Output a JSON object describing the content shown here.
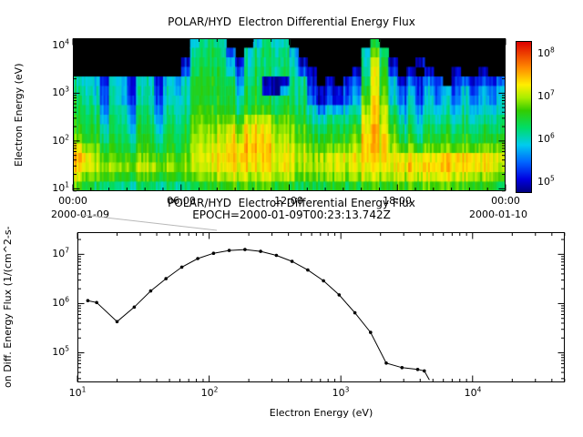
{
  "colors": {
    "background": "#ffffff",
    "frame": "#000000",
    "line": "#000000",
    "callout": "#b8b8b8",
    "no_data": "#000000",
    "colormap_stops": [
      {
        "v": 4.8,
        "c": "#000080"
      },
      {
        "v": 5.1,
        "c": "#0000e0"
      },
      {
        "v": 5.5,
        "c": "#0066ff"
      },
      {
        "v": 5.9,
        "c": "#00ccee"
      },
      {
        "v": 6.3,
        "c": "#00dd66"
      },
      {
        "v": 6.7,
        "c": "#33cc00"
      },
      {
        "v": 7.0,
        "c": "#aaee00"
      },
      {
        "v": 7.3,
        "c": "#ffee00"
      },
      {
        "v": 7.7,
        "c": "#ff8800"
      },
      {
        "v": 8.3,
        "c": "#dd0000"
      }
    ]
  },
  "chart_data": [
    {
      "type": "heatmap",
      "title": "POLAR/HYD  Electron Differential Energy Flux",
      "ylabel": "Electron Energy (eV)",
      "y_ticks": [
        {
          "base": "10",
          "exp": "4"
        },
        {
          "base": "10",
          "exp": "3"
        },
        {
          "base": "10",
          "exp": "2"
        },
        {
          "base": "10",
          "exp": "1"
        }
      ],
      "x_ticks": [
        "00:00",
        "06:00",
        "12:00",
        "18:00",
        "00:00"
      ],
      "x_date_start": "2000-01-09",
      "x_date_end": "2000-01-10",
      "time_range_hours": [
        0,
        24
      ],
      "y_range_log10": [
        0.95,
        4.15
      ],
      "colorbar_ticks": [
        {
          "base": "10",
          "exp": "8"
        },
        {
          "base": "10",
          "exp": "7"
        },
        {
          "base": "10",
          "exp": "6"
        },
        {
          "base": "10",
          "exp": "5"
        }
      ],
      "colorbar_range_log10": [
        4.8,
        8.3
      ],
      "grid_note": "rows top(10^4 eV) to bottom(10^1 eV), 48 columns of 30 min; values are log10 flux, 0 = no data (black)",
      "values_log10_flux": [
        [
          0,
          0,
          0,
          0,
          0,
          0,
          0,
          0,
          0,
          0,
          0,
          0,
          0,
          6.0,
          6.3,
          6.4,
          6.2,
          0,
          0,
          0,
          6.0,
          6.2,
          6.1,
          6.0,
          0,
          0,
          0,
          0,
          0,
          0,
          0,
          0,
          0,
          6.4,
          0,
          0,
          0,
          0,
          0,
          0,
          0,
          0,
          0,
          0,
          0,
          0,
          0,
          0
        ],
        [
          0,
          0,
          0,
          0,
          0,
          0,
          0,
          0,
          0,
          0,
          0,
          0,
          0,
          6.2,
          6.4,
          6.5,
          6.3,
          5.4,
          0,
          6.0,
          6.2,
          6.3,
          6.2,
          6.2,
          5.8,
          0,
          0,
          0,
          0,
          0,
          0,
          0,
          6.0,
          6.8,
          6.2,
          0,
          0,
          0,
          0,
          0,
          0,
          0,
          0,
          0,
          0,
          0,
          0,
          0
        ],
        [
          0,
          0,
          0,
          0,
          0,
          0,
          0,
          0,
          0,
          0,
          0,
          0,
          5.2,
          6.3,
          6.5,
          6.4,
          6.4,
          5.8,
          5.1,
          6.1,
          6.3,
          6.2,
          6.3,
          6.2,
          6.0,
          5.0,
          0,
          0,
          0,
          0,
          0,
          0,
          6.1,
          7.1,
          6.4,
          5.0,
          0,
          0,
          5.0,
          0,
          0,
          0,
          0,
          0,
          0,
          0,
          0,
          0
        ],
        [
          0,
          0,
          0,
          0,
          0,
          0,
          0,
          0,
          0,
          0,
          0,
          0,
          5.5,
          6.4,
          6.6,
          6.5,
          6.5,
          6.0,
          5.4,
          6.2,
          6.4,
          6.3,
          6.2,
          6.3,
          6.1,
          5.4,
          5.0,
          0,
          0,
          0,
          0,
          5.0,
          6.2,
          7.2,
          6.5,
          5.3,
          0,
          5.0,
          0,
          5.1,
          0,
          0,
          5.0,
          0,
          0,
          5.0,
          0,
          0
        ],
        [
          6.2,
          6.0,
          5.8,
          5.2,
          6.0,
          5.9,
          5.1,
          5.9,
          6.0,
          5.2,
          5.9,
          5.8,
          6.1,
          6.6,
          6.7,
          6.6,
          6.5,
          6.4,
          5.6,
          6.3,
          6.4,
          4.9,
          4.9,
          5.0,
          6.2,
          6.2,
          5.1,
          0,
          5.0,
          0,
          5.2,
          5.4,
          6.4,
          7.2,
          6.6,
          5.8,
          5.0,
          5.5,
          5.2,
          5.6,
          5.3,
          0,
          5.2,
          5.5,
          5.1,
          5.4,
          5.2,
          5.5
        ],
        [
          6.3,
          6.1,
          5.9,
          5.3,
          6.1,
          6.0,
          5.2,
          6.0,
          6.1,
          5.3,
          6.0,
          5.9,
          6.2,
          6.6,
          6.7,
          6.6,
          6.6,
          6.5,
          5.8,
          6.4,
          6.5,
          5.0,
          4.9,
          5.8,
          6.3,
          6.3,
          5.3,
          5.0,
          5.2,
          5.0,
          5.4,
          5.6,
          6.6,
          7.2,
          6.7,
          5.9,
          5.4,
          5.8,
          5.3,
          5.9,
          5.5,
          5.8,
          5.4,
          5.9,
          5.3,
          5.8,
          5.5,
          5.9
        ],
        [
          6.5,
          6.2,
          6.0,
          5.4,
          6.1,
          6.0,
          5.3,
          6.0,
          6.1,
          5.4,
          6.0,
          6.0,
          6.2,
          6.6,
          6.7,
          6.5,
          6.6,
          6.5,
          6.0,
          6.4,
          6.5,
          6.4,
          6.3,
          6.4,
          6.3,
          6.3,
          5.5,
          5.0,
          5.3,
          5.0,
          5.5,
          5.8,
          6.8,
          7.3,
          6.8,
          6.0,
          5.5,
          6.0,
          5.4,
          6.0,
          5.6,
          5.9,
          5.5,
          6.0,
          5.5,
          5.9,
          5.6,
          6.0
        ],
        [
          6.5,
          6.3,
          6.2,
          5.6,
          6.2,
          6.2,
          5.5,
          6.2,
          6.2,
          5.6,
          6.2,
          6.1,
          6.3,
          6.7,
          6.8,
          6.7,
          6.7,
          6.6,
          6.2,
          6.6,
          6.7,
          6.6,
          6.5,
          6.5,
          6.4,
          6.4,
          6.0,
          5.6,
          5.9,
          5.7,
          6.0,
          6.1,
          7.0,
          7.4,
          7.0,
          6.3,
          5.8,
          6.1,
          5.7,
          6.1,
          5.9,
          6.0,
          5.8,
          6.1,
          5.8,
          6.0,
          5.9,
          6.1
        ],
        [
          6.6,
          6.4,
          6.3,
          5.8,
          6.3,
          6.3,
          5.7,
          6.3,
          6.3,
          5.8,
          6.3,
          6.2,
          6.4,
          6.8,
          6.9,
          6.8,
          6.9,
          6.8,
          6.5,
          7.0,
          7.1,
          7.0,
          6.8,
          6.7,
          6.6,
          6.5,
          6.2,
          6.0,
          6.2,
          6.1,
          6.3,
          6.3,
          7.2,
          7.4,
          7.1,
          6.5,
          6.0,
          6.3,
          5.9,
          6.3,
          6.1,
          6.2,
          6.0,
          6.3,
          6.0,
          6.2,
          6.1,
          6.3
        ],
        [
          6.7,
          6.5,
          6.4,
          6.0,
          6.4,
          6.4,
          5.9,
          6.4,
          6.4,
          6.0,
          6.4,
          6.3,
          6.5,
          6.9,
          7.0,
          7.0,
          7.1,
          7.2,
          6.8,
          7.3,
          7.3,
          7.2,
          7.0,
          6.9,
          6.8,
          6.7,
          6.4,
          6.3,
          6.4,
          6.3,
          6.5,
          6.6,
          7.3,
          7.5,
          7.2,
          6.7,
          6.2,
          6.4,
          6.1,
          6.4,
          6.3,
          6.4,
          6.2,
          6.4,
          6.2,
          6.4,
          6.3,
          6.4
        ],
        [
          6.9,
          6.6,
          6.5,
          6.2,
          6.5,
          6.5,
          6.1,
          6.5,
          6.5,
          6.2,
          6.5,
          6.4,
          6.6,
          7.0,
          7.1,
          7.1,
          7.2,
          7.3,
          7.0,
          7.4,
          7.4,
          7.3,
          7.1,
          7.0,
          6.9,
          6.8,
          6.6,
          6.5,
          6.6,
          6.5,
          6.7,
          6.8,
          7.4,
          7.5,
          7.3,
          6.9,
          6.4,
          6.6,
          6.3,
          6.6,
          6.5,
          6.6,
          6.4,
          6.6,
          6.4,
          6.6,
          6.5,
          6.6
        ],
        [
          7.4,
          7.0,
          6.7,
          6.4,
          6.6,
          6.6,
          6.3,
          6.6,
          6.6,
          6.4,
          6.6,
          6.5,
          6.7,
          7.1,
          7.2,
          7.2,
          7.3,
          7.4,
          7.2,
          7.5,
          7.5,
          7.4,
          7.2,
          7.1,
          7.0,
          7.0,
          6.8,
          6.7,
          6.8,
          6.8,
          6.9,
          7.0,
          7.4,
          7.5,
          7.3,
          7.0,
          6.7,
          6.9,
          6.6,
          6.9,
          6.8,
          6.9,
          6.7,
          6.9,
          6.7,
          6.9,
          6.8,
          6.9
        ],
        [
          7.6,
          7.3,
          6.9,
          6.7,
          6.8,
          6.8,
          6.6,
          6.8,
          6.8,
          6.7,
          6.8,
          6.7,
          6.9,
          7.2,
          7.3,
          7.3,
          7.4,
          7.4,
          7.3,
          7.4,
          7.4,
          7.4,
          7.3,
          7.2,
          7.1,
          7.1,
          7.0,
          7.0,
          7.1,
          7.1,
          7.2,
          7.2,
          7.4,
          7.4,
          7.3,
          7.2,
          7.2,
          7.3,
          7.2,
          7.3,
          7.3,
          7.4,
          7.3,
          7.4,
          7.3,
          7.3,
          7.2,
          7.2
        ],
        [
          7.5,
          7.2,
          7.0,
          6.9,
          7.0,
          7.0,
          6.8,
          7.0,
          7.0,
          6.9,
          7.0,
          6.9,
          7.0,
          7.1,
          7.2,
          7.2,
          7.3,
          7.3,
          7.2,
          7.3,
          7.3,
          7.3,
          7.2,
          7.2,
          7.1,
          7.0,
          7.0,
          7.0,
          7.1,
          7.1,
          7.1,
          7.1,
          7.3,
          7.3,
          7.2,
          7.2,
          7.3,
          7.4,
          7.3,
          7.4,
          7.4,
          7.4,
          7.3,
          7.4,
          7.3,
          7.3,
          7.2,
          7.1
        ],
        [
          7.2,
          6.9,
          6.7,
          6.6,
          6.7,
          6.7,
          6.5,
          6.7,
          6.7,
          6.6,
          6.7,
          6.6,
          6.8,
          6.9,
          7.0,
          7.0,
          7.1,
          7.1,
          7.0,
          7.1,
          7.1,
          7.1,
          7.0,
          7.0,
          6.9,
          6.8,
          6.8,
          6.8,
          6.9,
          6.9,
          6.9,
          6.9,
          7.1,
          7.1,
          7.0,
          7.0,
          7.1,
          7.2,
          7.1,
          7.2,
          7.2,
          7.2,
          7.1,
          7.1,
          7.0,
          7.0,
          6.9,
          6.8
        ],
        [
          6.8,
          6.5,
          6.3,
          6.2,
          6.3,
          6.3,
          6.1,
          6.3,
          6.3,
          6.2,
          6.3,
          6.2,
          6.4,
          6.5,
          6.6,
          6.6,
          6.7,
          6.7,
          6.6,
          6.7,
          6.7,
          6.7,
          6.6,
          6.6,
          6.5,
          6.4,
          6.4,
          6.4,
          6.5,
          6.5,
          6.5,
          6.5,
          6.7,
          6.7,
          6.6,
          6.6,
          6.7,
          6.8,
          6.7,
          6.8,
          6.8,
          6.8,
          6.7,
          6.7,
          6.6,
          6.6,
          6.5,
          6.4
        ]
      ]
    },
    {
      "type": "line",
      "title": "POLAR/HYD  Electron Differential Energy Flux",
      "subtitle": "EPOCH=2000-01-09T00:23:13.742Z",
      "xlabel": "Electron Energy (eV)",
      "ylabel_visible": "on Diff. Energy Flux (1/(cm^2-s-",
      "x_ticks": [
        {
          "base": "10",
          "exp": "1"
        },
        {
          "base": "10",
          "exp": "2"
        },
        {
          "base": "10",
          "exp": "3"
        },
        {
          "base": "10",
          "exp": "4"
        }
      ],
      "y_ticks": [
        {
          "base": "10",
          "exp": "7"
        },
        {
          "base": "10",
          "exp": "6"
        },
        {
          "base": "10",
          "exp": "5"
        }
      ],
      "x_range_log10": [
        1.0,
        4.7
      ],
      "y_range_log10": [
        4.4,
        7.45
      ],
      "points_eV_flux": [
        [
          12,
          1150000
        ],
        [
          14,
          1050000
        ],
        [
          20,
          430000
        ],
        [
          27,
          850000
        ],
        [
          36,
          1800000
        ],
        [
          47,
          3200000
        ],
        [
          62,
          5500000
        ],
        [
          82,
          8200000
        ],
        [
          108,
          10500000
        ],
        [
          142,
          12000000
        ],
        [
          187,
          12500000
        ],
        [
          246,
          11500000
        ],
        [
          324,
          9500000
        ],
        [
          426,
          7200000
        ],
        [
          561,
          4800000
        ],
        [
          738,
          2900000
        ],
        [
          971,
          1500000
        ],
        [
          1278,
          650000
        ],
        [
          1681,
          260000
        ],
        [
          2212,
          62000
        ],
        [
          2910,
          50000
        ],
        [
          3829,
          46000
        ],
        [
          4300,
          43000
        ],
        [
          4700,
          28000
        ]
      ]
    }
  ]
}
